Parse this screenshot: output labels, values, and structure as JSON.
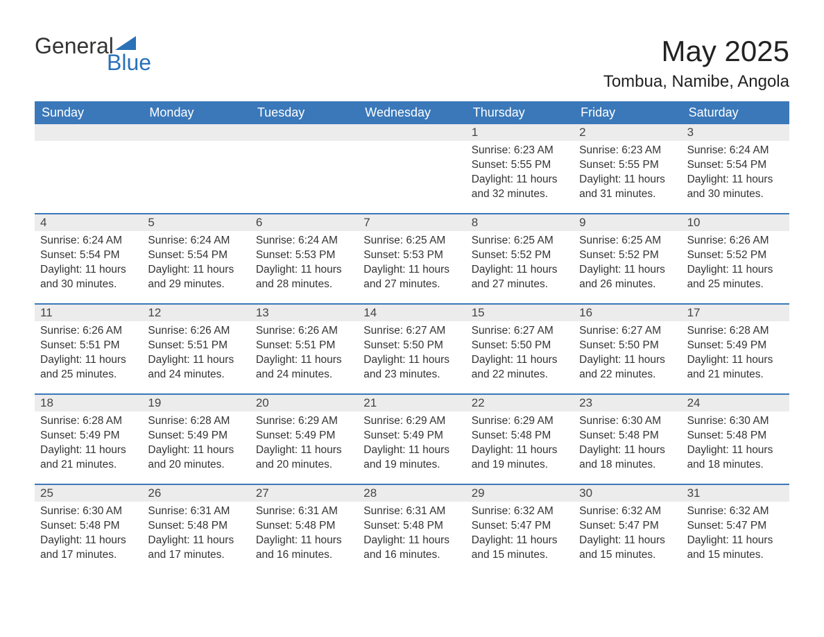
{
  "logo": {
    "text1": "General",
    "text2": "Blue",
    "shape_color": "#2a71b8",
    "text1_color": "#333333",
    "text2_color": "#2a71b8"
  },
  "title": "May 2025",
  "location": "Tombua, Namibe, Angola",
  "colors": {
    "header_bg": "#3a78b9",
    "header_text": "#ffffff",
    "daynum_bg": "#ececec",
    "daynum_text": "#444444",
    "body_text": "#333333",
    "rule": "#3a78b9",
    "page_bg": "#ffffff"
  },
  "weekdays": [
    "Sunday",
    "Monday",
    "Tuesday",
    "Wednesday",
    "Thursday",
    "Friday",
    "Saturday"
  ],
  "weeks": [
    [
      {
        "empty": true
      },
      {
        "empty": true
      },
      {
        "empty": true
      },
      {
        "empty": true
      },
      {
        "n": "1",
        "sunrise": "6:23 AM",
        "sunset": "5:55 PM",
        "daylight": "11 hours and 32 minutes."
      },
      {
        "n": "2",
        "sunrise": "6:23 AM",
        "sunset": "5:55 PM",
        "daylight": "11 hours and 31 minutes."
      },
      {
        "n": "3",
        "sunrise": "6:24 AM",
        "sunset": "5:54 PM",
        "daylight": "11 hours and 30 minutes."
      }
    ],
    [
      {
        "n": "4",
        "sunrise": "6:24 AM",
        "sunset": "5:54 PM",
        "daylight": "11 hours and 30 minutes."
      },
      {
        "n": "5",
        "sunrise": "6:24 AM",
        "sunset": "5:54 PM",
        "daylight": "11 hours and 29 minutes."
      },
      {
        "n": "6",
        "sunrise": "6:24 AM",
        "sunset": "5:53 PM",
        "daylight": "11 hours and 28 minutes."
      },
      {
        "n": "7",
        "sunrise": "6:25 AM",
        "sunset": "5:53 PM",
        "daylight": "11 hours and 27 minutes."
      },
      {
        "n": "8",
        "sunrise": "6:25 AM",
        "sunset": "5:52 PM",
        "daylight": "11 hours and 27 minutes."
      },
      {
        "n": "9",
        "sunrise": "6:25 AM",
        "sunset": "5:52 PM",
        "daylight": "11 hours and 26 minutes."
      },
      {
        "n": "10",
        "sunrise": "6:26 AM",
        "sunset": "5:52 PM",
        "daylight": "11 hours and 25 minutes."
      }
    ],
    [
      {
        "n": "11",
        "sunrise": "6:26 AM",
        "sunset": "5:51 PM",
        "daylight": "11 hours and 25 minutes."
      },
      {
        "n": "12",
        "sunrise": "6:26 AM",
        "sunset": "5:51 PM",
        "daylight": "11 hours and 24 minutes."
      },
      {
        "n": "13",
        "sunrise": "6:26 AM",
        "sunset": "5:51 PM",
        "daylight": "11 hours and 24 minutes."
      },
      {
        "n": "14",
        "sunrise": "6:27 AM",
        "sunset": "5:50 PM",
        "daylight": "11 hours and 23 minutes."
      },
      {
        "n": "15",
        "sunrise": "6:27 AM",
        "sunset": "5:50 PM",
        "daylight": "11 hours and 22 minutes."
      },
      {
        "n": "16",
        "sunrise": "6:27 AM",
        "sunset": "5:50 PM",
        "daylight": "11 hours and 22 minutes."
      },
      {
        "n": "17",
        "sunrise": "6:28 AM",
        "sunset": "5:49 PM",
        "daylight": "11 hours and 21 minutes."
      }
    ],
    [
      {
        "n": "18",
        "sunrise": "6:28 AM",
        "sunset": "5:49 PM",
        "daylight": "11 hours and 21 minutes."
      },
      {
        "n": "19",
        "sunrise": "6:28 AM",
        "sunset": "5:49 PM",
        "daylight": "11 hours and 20 minutes."
      },
      {
        "n": "20",
        "sunrise": "6:29 AM",
        "sunset": "5:49 PM",
        "daylight": "11 hours and 20 minutes."
      },
      {
        "n": "21",
        "sunrise": "6:29 AM",
        "sunset": "5:49 PM",
        "daylight": "11 hours and 19 minutes."
      },
      {
        "n": "22",
        "sunrise": "6:29 AM",
        "sunset": "5:48 PM",
        "daylight": "11 hours and 19 minutes."
      },
      {
        "n": "23",
        "sunrise": "6:30 AM",
        "sunset": "5:48 PM",
        "daylight": "11 hours and 18 minutes."
      },
      {
        "n": "24",
        "sunrise": "6:30 AM",
        "sunset": "5:48 PM",
        "daylight": "11 hours and 18 minutes."
      }
    ],
    [
      {
        "n": "25",
        "sunrise": "6:30 AM",
        "sunset": "5:48 PM",
        "daylight": "11 hours and 17 minutes."
      },
      {
        "n": "26",
        "sunrise": "6:31 AM",
        "sunset": "5:48 PM",
        "daylight": "11 hours and 17 minutes."
      },
      {
        "n": "27",
        "sunrise": "6:31 AM",
        "sunset": "5:48 PM",
        "daylight": "11 hours and 16 minutes."
      },
      {
        "n": "28",
        "sunrise": "6:31 AM",
        "sunset": "5:48 PM",
        "daylight": "11 hours and 16 minutes."
      },
      {
        "n": "29",
        "sunrise": "6:32 AM",
        "sunset": "5:47 PM",
        "daylight": "11 hours and 15 minutes."
      },
      {
        "n": "30",
        "sunrise": "6:32 AM",
        "sunset": "5:47 PM",
        "daylight": "11 hours and 15 minutes."
      },
      {
        "n": "31",
        "sunrise": "6:32 AM",
        "sunset": "5:47 PM",
        "daylight": "11 hours and 15 minutes."
      }
    ]
  ],
  "labels": {
    "sunrise": "Sunrise:",
    "sunset": "Sunset:",
    "daylight": "Daylight:"
  }
}
